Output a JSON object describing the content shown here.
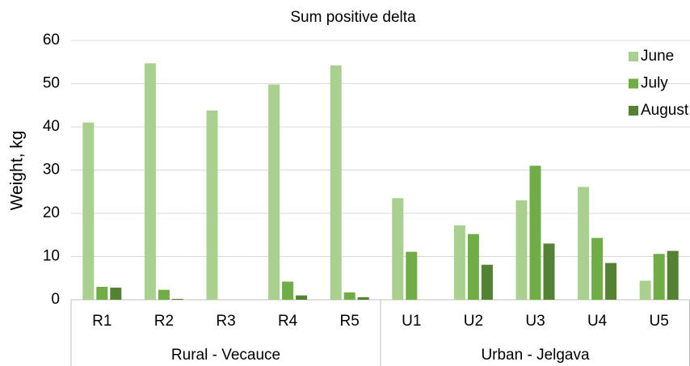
{
  "chart_data": {
    "type": "grouped-bar",
    "title": "Sum positive delta",
    "y_label": "Weight, kg",
    "categories": [
      "R1",
      "R2",
      "R3",
      "R4",
      "R5",
      "U1",
      "U2",
      "U3",
      "U4",
      "U5"
    ],
    "category_groups": [
      "Rural - Vecauce",
      "Urban - Jelgava"
    ],
    "series": [
      {
        "name": "June",
        "color": "#a9d08e",
        "values": [
          41,
          54.7,
          43.8,
          49.8,
          54.2,
          23.5,
          17.2,
          23,
          26.1,
          4.4
        ]
      },
      {
        "name": "July",
        "color": "#70ad47",
        "values": [
          3,
          2.3,
          0,
          4.2,
          1.7,
          11.1,
          15.2,
          31,
          14.3,
          10.6
        ]
      },
      {
        "name": "August",
        "color": "#548235",
        "values": [
          2.8,
          0.2,
          0,
          1,
          0.6,
          0,
          8.1,
          13,
          8.5,
          11.3
        ]
      }
    ],
    "ylim": [
      0,
      60
    ],
    "yticks": [
      0,
      10,
      20,
      30,
      40,
      50,
      60
    ],
    "grid": true,
    "legend": "upper right"
  }
}
